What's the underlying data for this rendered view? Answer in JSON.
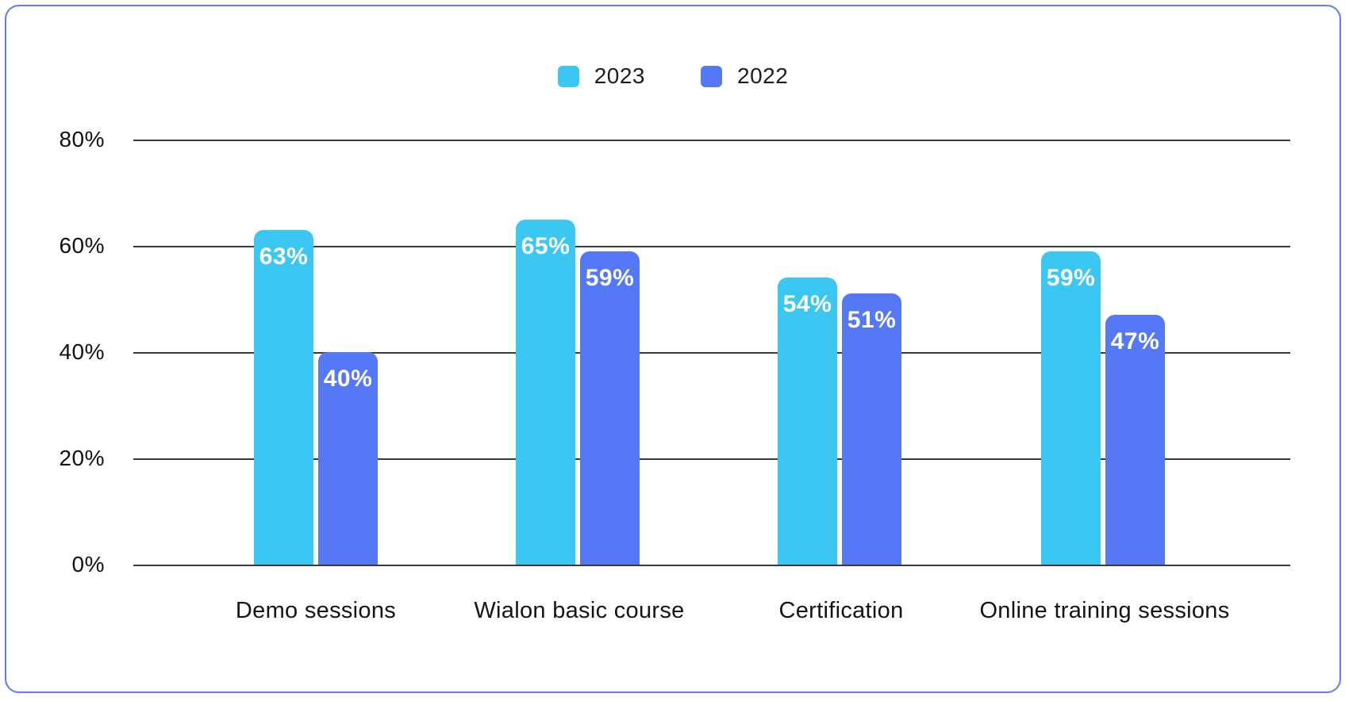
{
  "chart_data": {
    "type": "bar",
    "title": "",
    "categories": [
      "Demo sessions",
      "Wialon basic course",
      "Certification",
      "Online training sessions"
    ],
    "series": [
      {
        "name": "2023",
        "color": "#3CC7F2",
        "values": [
          63,
          65,
          54,
          59
        ]
      },
      {
        "name": "2022",
        "color": "#5578F7",
        "values": [
          40,
          59,
          51,
          47
        ]
      }
    ],
    "value_suffix": "%",
    "ylim": [
      0,
      80
    ],
    "yticks": [
      "80%",
      "60%",
      "40%",
      "20%",
      "0%"
    ],
    "grid": true,
    "legend_position": "top-center",
    "bar_value_labels_inside": true
  },
  "style_colors": {
    "frame_border": "#5e7cf0",
    "gridline": "#3a3a3a",
    "value_label_text": "#ffffff",
    "axis_text": "#111111"
  }
}
